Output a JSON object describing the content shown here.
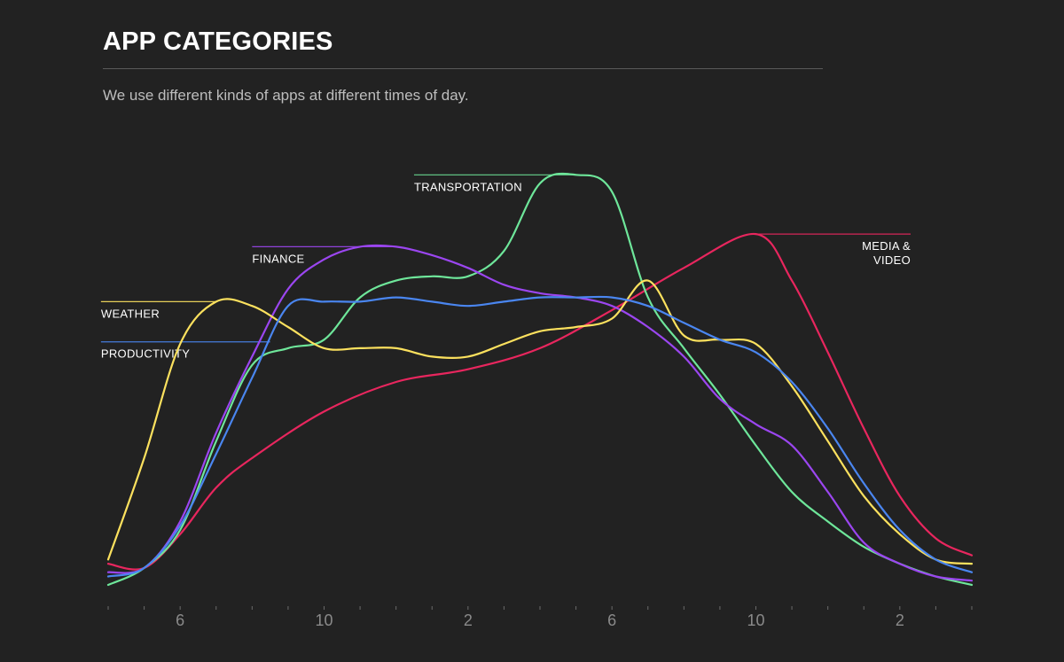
{
  "header": {
    "title": "APP CATEGORIES",
    "subtitle": "We use different kinds of apps at different times of day."
  },
  "chart_data": {
    "type": "line",
    "x_unit": "hour of day (4 = 4 AM, 28 = 4 AM next day)",
    "x_ticks": [
      {
        "x": 6,
        "label": "6"
      },
      {
        "x": 10,
        "label": "10"
      },
      {
        "x": 14,
        "label": "2"
      },
      {
        "x": 18,
        "label": "6"
      },
      {
        "x": 22,
        "label": "10"
      },
      {
        "x": 26,
        "label": "2"
      }
    ],
    "xlim": [
      4,
      28
    ],
    "ylim": [
      0,
      100
    ],
    "y_axis_shown": false,
    "grid": false,
    "series": [
      {
        "name": "MEDIA & VIDEO",
        "color": "#e8265e",
        "points": [
          [
            4,
            5
          ],
          [
            5,
            4
          ],
          [
            6,
            12
          ],
          [
            7,
            23
          ],
          [
            8,
            30
          ],
          [
            10,
            41
          ],
          [
            12,
            48
          ],
          [
            14,
            51
          ],
          [
            16,
            56
          ],
          [
            18,
            65
          ],
          [
            20,
            75
          ],
          [
            22,
            83
          ],
          [
            23,
            72
          ],
          [
            24,
            55
          ],
          [
            25,
            37
          ],
          [
            26,
            21
          ],
          [
            27,
            11
          ],
          [
            28,
            7
          ]
        ]
      },
      {
        "name": "TRANSPORTATION",
        "color": "#6ee69a",
        "points": [
          [
            4,
            0
          ],
          [
            5,
            4
          ],
          [
            6,
            13
          ],
          [
            7,
            34
          ],
          [
            8,
            52
          ],
          [
            9,
            56
          ],
          [
            10,
            58
          ],
          [
            11,
            68
          ],
          [
            12,
            72
          ],
          [
            13,
            73
          ],
          [
            14,
            73
          ],
          [
            15,
            79
          ],
          [
            16,
            95
          ],
          [
            17,
            97
          ],
          [
            18,
            93
          ],
          [
            19,
            68
          ],
          [
            20,
            56
          ],
          [
            21,
            45
          ],
          [
            22,
            33
          ],
          [
            23,
            22
          ],
          [
            24,
            15
          ],
          [
            25,
            9
          ],
          [
            26,
            5
          ],
          [
            27,
            2
          ],
          [
            28,
            0
          ]
        ]
      },
      {
        "name": "FINANCE",
        "color": "#9b46f0",
        "points": [
          [
            4,
            3
          ],
          [
            5,
            4
          ],
          [
            6,
            15
          ],
          [
            7,
            36
          ],
          [
            8,
            54
          ],
          [
            9,
            70
          ],
          [
            10,
            77
          ],
          [
            11,
            80
          ],
          [
            12,
            80
          ],
          [
            13,
            78
          ],
          [
            14,
            75
          ],
          [
            15,
            71
          ],
          [
            16,
            69
          ],
          [
            17,
            68
          ],
          [
            18,
            66
          ],
          [
            19,
            61
          ],
          [
            20,
            54
          ],
          [
            21,
            44
          ],
          [
            22,
            38
          ],
          [
            23,
            33
          ],
          [
            24,
            22
          ],
          [
            25,
            10
          ],
          [
            26,
            5
          ],
          [
            27,
            2
          ],
          [
            28,
            1
          ]
        ]
      },
      {
        "name": "WEATHER",
        "color": "#fce15e",
        "points": [
          [
            4,
            6
          ],
          [
            5,
            30
          ],
          [
            6,
            57
          ],
          [
            7,
            67
          ],
          [
            8,
            66
          ],
          [
            9,
            61
          ],
          [
            10,
            56
          ],
          [
            11,
            56
          ],
          [
            12,
            56
          ],
          [
            13,
            54
          ],
          [
            14,
            54
          ],
          [
            15,
            57
          ],
          [
            16,
            60
          ],
          [
            17,
            61
          ],
          [
            18,
            63
          ],
          [
            19,
            72
          ],
          [
            20,
            59
          ],
          [
            21,
            58
          ],
          [
            22,
            57
          ],
          [
            23,
            47
          ],
          [
            24,
            34
          ],
          [
            25,
            21
          ],
          [
            26,
            12
          ],
          [
            27,
            6
          ],
          [
            28,
            5
          ]
        ]
      },
      {
        "name": "PRODUCTIVITY",
        "color": "#4a86f0",
        "points": [
          [
            4,
            2
          ],
          [
            5,
            4
          ],
          [
            6,
            14
          ],
          [
            7,
            31
          ],
          [
            8,
            49
          ],
          [
            9,
            66
          ],
          [
            10,
            67
          ],
          [
            11,
            67
          ],
          [
            12,
            68
          ],
          [
            13,
            67
          ],
          [
            14,
            66
          ],
          [
            15,
            67
          ],
          [
            16,
            68
          ],
          [
            17,
            68
          ],
          [
            18,
            68
          ],
          [
            19,
            66
          ],
          [
            20,
            62
          ],
          [
            21,
            58
          ],
          [
            22,
            55
          ],
          [
            23,
            48
          ],
          [
            24,
            37
          ],
          [
            25,
            24
          ],
          [
            26,
            13
          ],
          [
            27,
            6
          ],
          [
            28,
            3
          ]
        ]
      }
    ],
    "annotations": [
      {
        "series": "TRANSPORTATION",
        "text": [
          "TRANSPORTATION"
        ],
        "anchor_x": 17,
        "leader_to_x": 12.5,
        "align": "left",
        "side": "below"
      },
      {
        "series": "FINANCE",
        "text": [
          "FINANCE"
        ],
        "anchor_x": 12,
        "leader_to_x": 8,
        "align": "left",
        "side": "below"
      },
      {
        "series": "WEATHER",
        "text": [
          "WEATHER"
        ],
        "anchor_x": 7,
        "leader_to_x": 3.8,
        "align": "left",
        "side": "below"
      },
      {
        "series": "PRODUCTIVITY",
        "text": [
          "PRODUCTIVITY"
        ],
        "anchor_x": 8.5,
        "leader_to_x": 3.8,
        "align": "left",
        "side": "below"
      },
      {
        "series": "MEDIA & VIDEO",
        "text": [
          "MEDIA &",
          "VIDEO"
        ],
        "anchor_x": 22,
        "leader_to_x": 26.3,
        "align": "right",
        "side": "below"
      }
    ]
  }
}
